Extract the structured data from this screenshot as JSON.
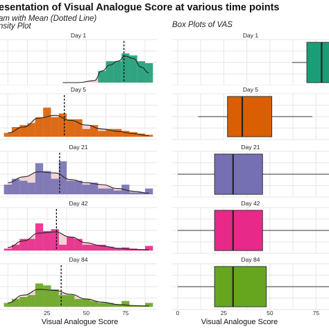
{
  "title": "esentation of Visual Analogue Score at various time points",
  "subtitle_left_line1": "am with Mean (Dotted Line)",
  "subtitle_left_line2": "nsity Plot",
  "subtitle_right": "Box Plots of VAS",
  "x_axis_label_left": "Visual Analogue Score",
  "x_axis_label_right": "Visual Analogue Score",
  "colors": {
    "panel_grid": "#e6e6e6",
    "density_fill": "#f4d4d4",
    "day1": "#1b9e77",
    "day5": "#d95f02",
    "day21": "#7570b3",
    "day42": "#e7298a",
    "day84": "#66a61e"
  },
  "chart_data": [
    {
      "type": "bar",
      "panel_group": "histogram-density",
      "xlim": [
        -5,
        95
      ],
      "x_ticks": [
        25,
        50,
        75
      ],
      "x_tick_labels": [
        "25",
        "50",
        "75"
      ],
      "xlabel": "Visual Analogue Score",
      "bin_width": 5,
      "facets": [
        {
          "label": "Day 1",
          "color": "#1b9e77",
          "bins_x": [
            60,
            65,
            70,
            75,
            80,
            85,
            90
          ],
          "counts": [
            0.3,
            0.55,
            0.55,
            0.75,
            0.7,
            0.55,
            0.5
          ],
          "mean": 74,
          "density_x": [
            35,
            45,
            55,
            60,
            65,
            70,
            75,
            80,
            85,
            90
          ],
          "density_y": [
            0.0,
            0.0,
            0.05,
            0.3,
            0.45,
            0.55,
            0.68,
            0.62,
            0.4,
            0.25
          ]
        },
        {
          "label": "Day 5",
          "color": "#d95f02",
          "bins_x": [
            0,
            5,
            10,
            15,
            20,
            25,
            30,
            35,
            40,
            45,
            50,
            55,
            60,
            65,
            70,
            75,
            80,
            85,
            90
          ],
          "counts": [
            0.1,
            0.25,
            0.3,
            0.35,
            0.5,
            0.75,
            0.5,
            0.6,
            0.45,
            0.45,
            0.2,
            0.3,
            0.15,
            0.2,
            0.2,
            0.15,
            0.12,
            0.08,
            0.05
          ],
          "mean": 36,
          "density_x": [
            0,
            10,
            20,
            30,
            40,
            50,
            60,
            70,
            80,
            90
          ],
          "density_y": [
            0.1,
            0.25,
            0.48,
            0.55,
            0.42,
            0.3,
            0.2,
            0.14,
            0.08,
            0.03
          ]
        },
        {
          "label": "Day 21",
          "color": "#7570b3",
          "bins_x": [
            0,
            5,
            10,
            15,
            20,
            25,
            30,
            35,
            40,
            45,
            50,
            55,
            60,
            65,
            70,
            75,
            80,
            85,
            90
          ],
          "counts": [
            0.25,
            0.4,
            0.35,
            0.3,
            0.8,
            0.6,
            0.4,
            0.85,
            0.35,
            0.35,
            0.25,
            0.3,
            0.15,
            0.15,
            0.1,
            0.25,
            0.05,
            0.05,
            0.15
          ],
          "mean": 33,
          "density_x": [
            0,
            10,
            20,
            30,
            40,
            50,
            60,
            70,
            80,
            90
          ],
          "density_y": [
            0.3,
            0.45,
            0.58,
            0.55,
            0.38,
            0.3,
            0.25,
            0.15,
            0.08,
            0.03
          ]
        },
        {
          "label": "Day 42",
          "color": "#e7298a",
          "bins_x": [
            0,
            5,
            10,
            15,
            20,
            25,
            30,
            35,
            40,
            45,
            50,
            55,
            60,
            65,
            70,
            75,
            80,
            85,
            90
          ],
          "counts": [
            0.05,
            0.15,
            0.3,
            0.3,
            0.7,
            0.5,
            0.55,
            0.15,
            0.35,
            0.3,
            0.15,
            0.15,
            0.15,
            0.1,
            0.05,
            0.08,
            0.05,
            0.03,
            0.12
          ],
          "mean": 31,
          "density_x": [
            0,
            10,
            20,
            30,
            40,
            50,
            60,
            70,
            80,
            90
          ],
          "density_y": [
            0.08,
            0.25,
            0.45,
            0.48,
            0.35,
            0.2,
            0.12,
            0.06,
            0.03,
            0.02
          ]
        },
        {
          "label": "Day 84",
          "color": "#66a61e",
          "bins_x": [
            0,
            5,
            10,
            15,
            20,
            25,
            30,
            35,
            40,
            45,
            50,
            55,
            60,
            65,
            70,
            75,
            80,
            85,
            90
          ],
          "counts": [
            0.1,
            0.2,
            0.25,
            0.3,
            0.6,
            0.55,
            0.45,
            0.3,
            0.3,
            0.2,
            0.2,
            0.15,
            0.1,
            0.1,
            0.05,
            0.15,
            0.03,
            0.03,
            0.1
          ],
          "mean": 34,
          "density_x": [
            0,
            10,
            20,
            30,
            40,
            50,
            60,
            70,
            80,
            90
          ],
          "density_y": [
            0.1,
            0.3,
            0.45,
            0.42,
            0.32,
            0.2,
            0.12,
            0.06,
            0.03,
            0.02
          ]
        }
      ]
    },
    {
      "type": "boxplot",
      "panel_group": "boxplots",
      "title": "Box Plots of VAS",
      "xlim": [
        -3,
        82
      ],
      "x_ticks": [
        0,
        25,
        50,
        75
      ],
      "x_tick_labels": [
        "0",
        "25",
        "50",
        "75"
      ],
      "xlabel": "Visual Analogue Score",
      "facets": [
        {
          "label": "Day 1",
          "color": "#1b9e77",
          "whisker_low": 62,
          "q1": 70,
          "median": 78,
          "q3": 88,
          "whisker_high": 90
        },
        {
          "label": "Day 5",
          "color": "#d95f02",
          "whisker_low": 11,
          "q1": 27,
          "median": 35,
          "q3": 51,
          "whisker_high": 73
        },
        {
          "label": "Day 21",
          "color": "#7570b3",
          "whisker_low": 0,
          "q1": 20,
          "median": 30,
          "q3": 46,
          "whisker_high": 90
        },
        {
          "label": "Day 42",
          "color": "#e7298a",
          "whisker_low": 0,
          "q1": 20,
          "median": 30,
          "q3": 46,
          "whisker_high": 90
        },
        {
          "label": "Day 84",
          "color": "#66a61e",
          "whisker_low": 0,
          "q1": 20,
          "median": 30,
          "q3": 48,
          "whisker_high": 90
        }
      ]
    }
  ]
}
